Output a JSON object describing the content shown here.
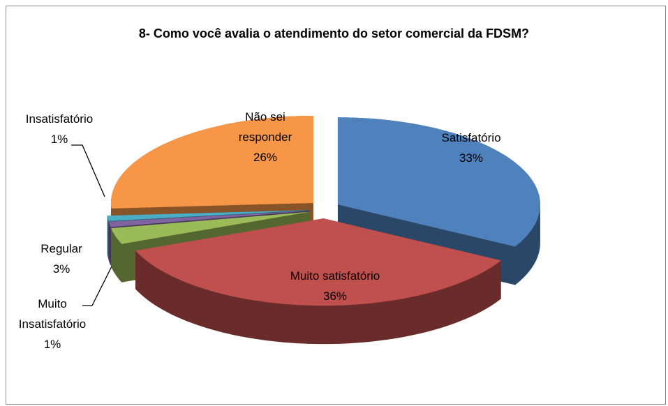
{
  "chart_data": {
    "type": "pie",
    "title": "8- Como você avalia o atendimento do setor comercial da FDSM?",
    "categories": [
      "Satisfatório",
      "Muito satisfatório",
      "Regular",
      "Muito Insatisfatório",
      "Insatisfatório",
      "Não sei responder"
    ],
    "values": [
      33,
      36,
      3,
      1,
      1,
      26
    ],
    "value_labels": [
      "33%",
      "36%",
      "3%",
      "1%",
      "1%",
      "26%"
    ],
    "colors": [
      "#4f81bd",
      "#c0504d",
      "#9bbb59",
      "#8064a2",
      "#4bacc6",
      "#f79646"
    ]
  }
}
